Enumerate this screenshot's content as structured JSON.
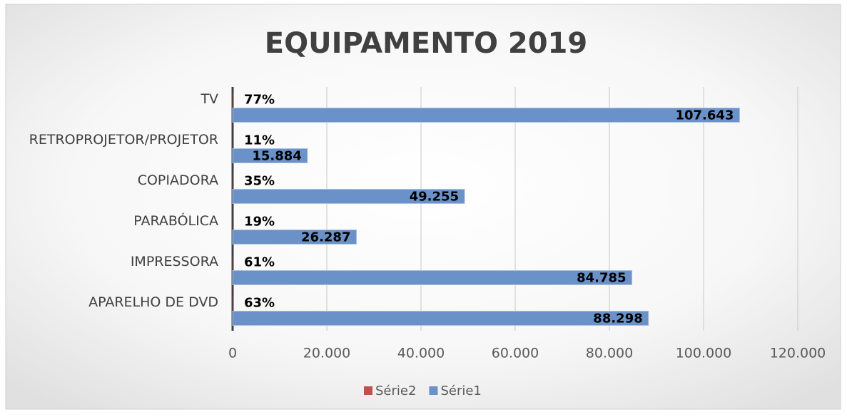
{
  "chart_data": {
    "type": "bar",
    "orientation": "horizontal",
    "title": "EQUIPAMENTO 2019",
    "categories": [
      "TV",
      "RETROPROJETOR/PROJETOR",
      "COPIADORA",
      "PARABÓLICA",
      "IMPRESSORA",
      "APARELHO DE DVD"
    ],
    "series": [
      {
        "name": "Série2",
        "color": "#c0504d",
        "values": [
          77,
          11,
          35,
          19,
          61,
          63
        ],
        "value_labels": [
          "77%",
          "11%",
          "35%",
          "19%",
          "61%",
          "63%"
        ]
      },
      {
        "name": "Série1",
        "color": "#6a92c8",
        "values": [
          107643,
          15884,
          49255,
          26287,
          84785,
          88298
        ],
        "value_labels": [
          "107.643",
          "15.884",
          "49.255",
          "26.287",
          "84.785",
          "88.298"
        ]
      }
    ],
    "xlim": [
      0,
      120000
    ],
    "xticks": [
      0,
      {
        "value": 20000,
        "label": "20.000"
      },
      {
        "value": 40000,
        "label": "40.000"
      },
      {
        "value": 60000,
        "label": "60.000"
      },
      {
        "value": 80000,
        "label": "80.000"
      },
      {
        "value": 100000,
        "label": "100.000"
      },
      {
        "value": 120000,
        "label": "120.000"
      }
    ],
    "grid": true,
    "legend": "bottom"
  }
}
